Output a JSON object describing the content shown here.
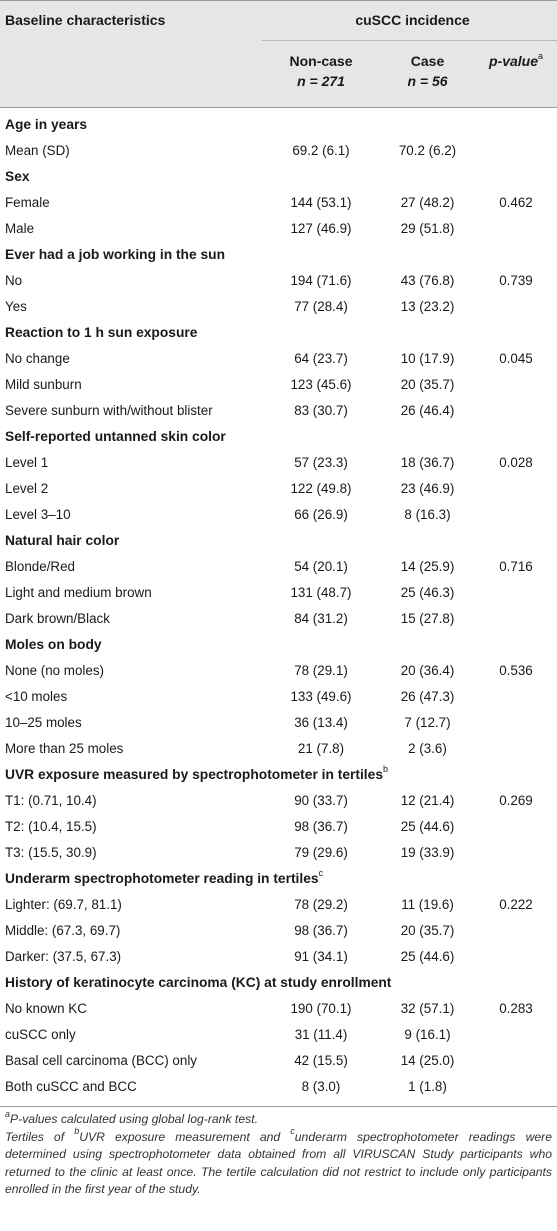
{
  "header": {
    "baseline_label": "Baseline characteristics",
    "incidence_label": "cuSCC incidence",
    "noncase_label": "Non-case",
    "noncase_n": "n = 271",
    "case_label": "Case",
    "case_n": "n = 56",
    "pvalue_label": "p-value",
    "pvalue_sup": "a"
  },
  "rows": [
    {
      "type": "section",
      "label": "Age in years"
    },
    {
      "type": "data",
      "label": "Mean (SD)",
      "noncase": "69.2 (6.1)",
      "case": "70.2 (6.2)",
      "p": ""
    },
    {
      "type": "section",
      "label": "Sex"
    },
    {
      "type": "data",
      "label": "Female",
      "noncase": "144 (53.1)",
      "case": "27 (48.2)",
      "p": "0.462"
    },
    {
      "type": "data",
      "label": "Male",
      "noncase": "127 (46.9)",
      "case": "29 (51.8)",
      "p": ""
    },
    {
      "type": "section",
      "label": "Ever had a job working in the sun"
    },
    {
      "type": "data",
      "label": "No",
      "noncase": "194 (71.6)",
      "case": "43 (76.8)",
      "p": "0.739"
    },
    {
      "type": "data",
      "label": "Yes",
      "noncase": "77 (28.4)",
      "case": "13 (23.2)",
      "p": ""
    },
    {
      "type": "section",
      "label": "Reaction to 1 h sun exposure"
    },
    {
      "type": "data",
      "label": "No change",
      "noncase": "64 (23.7)",
      "case": "10 (17.9)",
      "p": "0.045"
    },
    {
      "type": "data",
      "label": "Mild sunburn",
      "noncase": "123 (45.6)",
      "case": "20 (35.7)",
      "p": ""
    },
    {
      "type": "data",
      "label": "Severe sunburn with/without blister",
      "noncase": "83 (30.7)",
      "case": "26 (46.4)",
      "p": ""
    },
    {
      "type": "section",
      "label": "Self-reported untanned skin color"
    },
    {
      "type": "data",
      "label": "Level 1",
      "noncase": "57 (23.3)",
      "case": "18 (36.7)",
      "p": "0.028"
    },
    {
      "type": "data",
      "label": "Level 2",
      "noncase": "122 (49.8)",
      "case": "23 (46.9)",
      "p": ""
    },
    {
      "type": "data",
      "label": "Level 3–10",
      "noncase": "66 (26.9)",
      "case": "8 (16.3)",
      "p": ""
    },
    {
      "type": "section",
      "label": "Natural hair color"
    },
    {
      "type": "data",
      "label": "Blonde/Red",
      "noncase": "54 (20.1)",
      "case": "14 (25.9)",
      "p": "0.716"
    },
    {
      "type": "data",
      "label": "Light and medium brown",
      "noncase": "131 (48.7)",
      "case": "25 (46.3)",
      "p": ""
    },
    {
      "type": "data",
      "label": "Dark brown/Black",
      "noncase": "84 (31.2)",
      "case": "15 (27.8)",
      "p": ""
    },
    {
      "type": "section",
      "label": "Moles on body"
    },
    {
      "type": "data",
      "label": "None (no moles)",
      "noncase": "78 (29.1)",
      "case": "20 (36.4)",
      "p": "0.536"
    },
    {
      "type": "data",
      "label": "<10 moles",
      "noncase": "133 (49.6)",
      "case": "26 (47.3)",
      "p": ""
    },
    {
      "type": "data",
      "label": "10–25 moles",
      "noncase": "36 (13.4)",
      "case": "7 (12.7)",
      "p": ""
    },
    {
      "type": "data",
      "label": "More than 25 moles",
      "noncase": "21 (7.8)",
      "case": "2 (3.6)",
      "p": ""
    },
    {
      "type": "section",
      "label": "UVR exposure measured by spectrophotometer in tertiles",
      "sup": "b"
    },
    {
      "type": "data",
      "label": "T1: (0.71, 10.4)",
      "noncase": "90 (33.7)",
      "case": "12 (21.4)",
      "p": "0.269"
    },
    {
      "type": "data",
      "label": "T2: (10.4, 15.5)",
      "noncase": "98 (36.7)",
      "case": "25 (44.6)",
      "p": ""
    },
    {
      "type": "data",
      "label": "T3: (15.5, 30.9)",
      "noncase": "79 (29.6)",
      "case": "19 (33.9)",
      "p": ""
    },
    {
      "type": "section",
      "label": "Underarm spectrophotometer reading in tertiles",
      "sup": "c"
    },
    {
      "type": "data",
      "label": "Lighter: (69.7, 81.1)",
      "noncase": "78 (29.2)",
      "case": "11 (19.6)",
      "p": "0.222"
    },
    {
      "type": "data",
      "label": "Middle: (67.3, 69.7)",
      "noncase": "98 (36.7)",
      "case": "20 (35.7)",
      "p": ""
    },
    {
      "type": "data",
      "label": "Darker: (37.5, 67.3)",
      "noncase": "91 (34.1)",
      "case": "25 (44.6)",
      "p": ""
    },
    {
      "type": "section",
      "label": "History of keratinocyte carcinoma (KC) at study enrollment"
    },
    {
      "type": "data",
      "label": "No known KC",
      "noncase": "190 (70.1)",
      "case": "32 (57.1)",
      "p": "0.283"
    },
    {
      "type": "data",
      "label": "cuSCC only",
      "noncase": "31 (11.4)",
      "case": "9 (16.1)",
      "p": ""
    },
    {
      "type": "data",
      "label": "Basal cell carcinoma (BCC) only",
      "noncase": "42 (15.5)",
      "case": "14 (25.0)",
      "p": ""
    },
    {
      "type": "data",
      "label": "Both cuSCC and BCC",
      "noncase": "8 (3.0)",
      "case": "1 (1.8)",
      "p": ""
    }
  ],
  "footnotes": {
    "a_sup": "a",
    "a_text": "P-values calculated using global log-rank test.",
    "tertile_prefix": "Tertiles of ",
    "b_sup": "b",
    "b_text": "UVR exposure measurement and ",
    "c_sup": "c",
    "c_text": "underarm spectrophotometer readings were determined using spectrophotometer data obtained from all VIRUSCAN Study participants who returned to the clinic at least once. The tertile calculation did not restrict to include only participants enrolled in the first year of the study."
  }
}
